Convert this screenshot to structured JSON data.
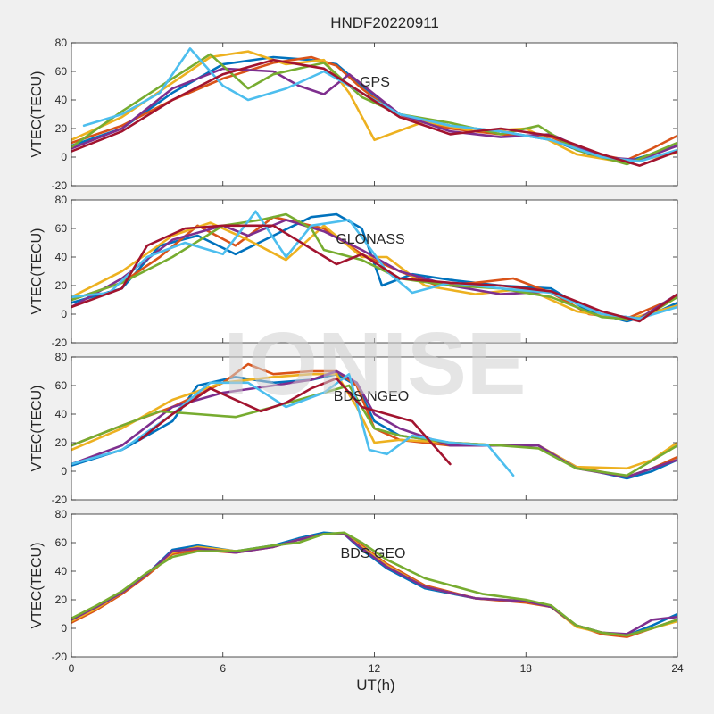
{
  "figure_title": "HNDF20220911",
  "watermark": "IONISE",
  "chart_data": [
    {
      "type": "line",
      "panel_label": "GPS",
      "ylabel": "VTEC(TECU)",
      "xlabel": "",
      "xlim": [
        0,
        24
      ],
      "ylim": [
        -20,
        80
      ],
      "xticks": [
        0,
        6,
        12,
        18,
        24
      ],
      "yticks": [
        -20,
        0,
        20,
        40,
        60,
        80
      ],
      "series": [
        {
          "color": "#0072BD",
          "x": [
            0.0,
            2.0,
            4.0,
            6.0,
            8.0,
            9.5,
            10.5,
            11.5,
            13.0,
            15.0,
            17.0,
            19.0,
            20.5,
            22.0,
            23.0,
            24.0
          ],
          "y": [
            8,
            20,
            45,
            65,
            70,
            68,
            65,
            50,
            30,
            22,
            18,
            12,
            2,
            -3,
            2,
            8
          ]
        },
        {
          "color": "#D95319",
          "x": [
            0.0,
            2.0,
            4.0,
            6.0,
            8.0,
            9.5,
            10.5,
            11.5,
            13.0,
            15.0,
            17.0,
            19.0,
            20.5,
            22.0,
            23.0,
            24.0
          ],
          "y": [
            10,
            22,
            40,
            55,
            66,
            70,
            64,
            48,
            28,
            20,
            16,
            14,
            3,
            -2,
            6,
            15
          ]
        },
        {
          "color": "#EDB120",
          "x": [
            0.0,
            2.0,
            4.0,
            5.5,
            7.0,
            8.5,
            10.0,
            11.0,
            12.0,
            14.0,
            16.0,
            18.0,
            20.0,
            22.0,
            24.0
          ],
          "y": [
            12,
            28,
            52,
            70,
            74,
            65,
            68,
            45,
            12,
            25,
            18,
            20,
            2,
            -4,
            3
          ]
        },
        {
          "color": "#7E2F8E",
          "x": [
            0.0,
            2.0,
            4.0,
            6.0,
            8.0,
            9.0,
            10.0,
            11.0,
            13.0,
            15.0,
            17.0,
            19.0,
            21.0,
            22.5,
            24.0
          ],
          "y": [
            6,
            20,
            48,
            62,
            60,
            50,
            44,
            58,
            30,
            18,
            14,
            16,
            0,
            -2,
            8
          ]
        },
        {
          "color": "#77AC30",
          "x": [
            0.0,
            2.0,
            4.0,
            5.5,
            7.0,
            8.0,
            10.0,
            11.5,
            13.0,
            15.0,
            17.0,
            18.5,
            20.0,
            22.0,
            24.0
          ],
          "y": [
            7,
            32,
            55,
            72,
            48,
            58,
            66,
            42,
            30,
            24,
            16,
            22,
            5,
            -5,
            10
          ]
        },
        {
          "color": "#4DBEEE",
          "x": [
            0.5,
            2.0,
            3.5,
            4.7,
            6.0,
            7.0,
            8.5,
            10.0,
            11.5,
            13.0,
            15.0,
            17.0,
            19.0,
            21.0,
            22.5,
            24.0
          ],
          "y": [
            22,
            30,
            45,
            76,
            50,
            40,
            48,
            60,
            45,
            30,
            22,
            18,
            12,
            0,
            -3,
            5
          ]
        },
        {
          "color": "#A2142F",
          "x": [
            0.0,
            2.0,
            4.0,
            6.0,
            8.0,
            10.0,
            11.5,
            13.0,
            15.0,
            17.0,
            19.0,
            21.0,
            22.5,
            24.0
          ],
          "y": [
            4,
            18,
            40,
            58,
            68,
            62,
            45,
            28,
            16,
            20,
            15,
            2,
            -6,
            4
          ]
        }
      ]
    },
    {
      "type": "line",
      "panel_label": "GLONASS",
      "ylabel": "VTEC(TECU)",
      "xlabel": "",
      "xlim": [
        0,
        24
      ],
      "ylim": [
        -20,
        80
      ],
      "xticks": [
        0,
        6,
        12,
        18,
        24
      ],
      "yticks": [
        -20,
        0,
        20,
        40,
        60,
        80
      ],
      "series": [
        {
          "color": "#0072BD",
          "x": [
            0.0,
            2.0,
            3.5,
            5.0,
            6.5,
            8.0,
            9.5,
            10.5,
            11.5,
            12.3,
            13.5,
            15.0,
            17.0,
            19.0,
            20.5,
            22.0,
            23.0,
            24.0
          ],
          "y": [
            8,
            18,
            48,
            55,
            42,
            55,
            68,
            70,
            60,
            20,
            28,
            24,
            20,
            18,
            2,
            -5,
            0,
            8
          ]
        },
        {
          "color": "#D95319",
          "x": [
            0.0,
            2.0,
            3.5,
            5.0,
            6.5,
            8.0,
            10.0,
            11.5,
            13.0,
            14.5,
            16.0,
            17.5,
            19.0,
            20.5,
            22.0,
            24.0
          ],
          "y": [
            10,
            22,
            40,
            62,
            48,
            68,
            60,
            42,
            30,
            20,
            22,
            25,
            15,
            0,
            -3,
            12
          ]
        },
        {
          "color": "#EDB120",
          "x": [
            0.0,
            2.0,
            4.0,
            5.5,
            7.0,
            8.5,
            10.0,
            11.5,
            12.5,
            14.0,
            16.0,
            18.0,
            20.0,
            22.0,
            24.0
          ],
          "y": [
            12,
            30,
            55,
            64,
            52,
            38,
            62,
            40,
            40,
            20,
            14,
            18,
            2,
            -4,
            6
          ]
        },
        {
          "color": "#7E2F8E",
          "x": [
            0.0,
            2.0,
            4.0,
            6.0,
            7.0,
            8.5,
            10.0,
            11.5,
            13.0,
            15.0,
            17.0,
            19.0,
            21.0,
            22.5,
            24.0
          ],
          "y": [
            5,
            25,
            52,
            62,
            55,
            66,
            58,
            45,
            30,
            20,
            14,
            16,
            0,
            -3,
            14
          ]
        },
        {
          "color": "#77AC30",
          "x": [
            0.0,
            2.0,
            4.0,
            6.0,
            7.5,
            8.5,
            9.5,
            10.0,
            11.5,
            13.0,
            15.0,
            17.0,
            19.0,
            21.0,
            22.5,
            24.0
          ],
          "y": [
            10,
            22,
            40,
            62,
            66,
            70,
            60,
            45,
            38,
            25,
            20,
            18,
            12,
            -2,
            -4,
            12
          ]
        },
        {
          "color": "#4DBEEE",
          "x": [
            0.0,
            1.5,
            3.0,
            4.5,
            6.0,
            7.3,
            8.5,
            9.5,
            11.0,
            12.5,
            13.5,
            15.0,
            17.0,
            19.0,
            21.0,
            22.5,
            24.0
          ],
          "y": [
            12,
            15,
            40,
            50,
            42,
            72,
            40,
            62,
            66,
            30,
            15,
            22,
            18,
            15,
            0,
            -3,
            5
          ]
        },
        {
          "color": "#A2142F",
          "x": [
            0.0,
            2.0,
            3.0,
            4.5,
            6.0,
            8.0,
            10.5,
            11.5,
            13.0,
            15.0,
            17.0,
            19.0,
            21.0,
            22.5,
            24.0
          ],
          "y": [
            5,
            18,
            48,
            60,
            62,
            62,
            35,
            42,
            25,
            22,
            20,
            16,
            2,
            -5,
            14
          ]
        }
      ]
    },
    {
      "type": "line",
      "panel_label": "BDS NGEO",
      "ylabel": "VTEC(TECU)",
      "xlabel": "",
      "xlim": [
        0,
        24
      ],
      "ylim": [
        -20,
        80
      ],
      "xticks": [
        0,
        6,
        12,
        18,
        24
      ],
      "yticks": [
        -20,
        0,
        20,
        40,
        60,
        80
      ],
      "series": [
        {
          "color": "#0072BD",
          "x": [
            0.0,
            2.0,
            4.0,
            5.0,
            6.5,
            8.0,
            9.5,
            10.5,
            11.3,
            12.0,
            13.0,
            15.0,
            17.0,
            18.5,
            20.0,
            22.0,
            23.0,
            24.0
          ],
          "y": [
            4,
            15,
            35,
            60,
            66,
            62,
            64,
            68,
            60,
            35,
            25,
            20,
            18,
            18,
            3,
            -5,
            0,
            8
          ]
        },
        {
          "color": "#D95319",
          "x": [
            0.0,
            2.0,
            4.0,
            6.0,
            7.0,
            8.0,
            9.5,
            10.5,
            11.3,
            12.0,
            13.0,
            15.0,
            17.0,
            18.5,
            20.0,
            22.0,
            23.0,
            24.0
          ],
          "y": [
            18,
            32,
            45,
            62,
            75,
            68,
            70,
            70,
            60,
            30,
            22,
            18,
            18,
            18,
            3,
            -4,
            2,
            10
          ]
        },
        {
          "color": "#EDB120",
          "x": [
            0.0,
            2.0,
            4.0,
            6.0,
            8.0,
            9.5,
            10.5,
            11.3,
            12.0,
            13.0,
            15.0,
            17.0,
            18.5,
            20.0,
            22.0,
            23.0,
            24.0
          ],
          "y": [
            15,
            30,
            50,
            62,
            66,
            68,
            68,
            45,
            20,
            22,
            20,
            18,
            18,
            3,
            2,
            8,
            20
          ]
        },
        {
          "color": "#7E2F8E",
          "x": [
            0.0,
            2.0,
            4.0,
            6.0,
            8.0,
            9.5,
            10.5,
            11.3,
            12.0,
            13.0,
            15.0,
            17.0,
            18.5,
            20.0,
            22.0,
            24.0
          ],
          "y": [
            5,
            18,
            45,
            55,
            60,
            64,
            70,
            62,
            40,
            30,
            18,
            18,
            18,
            2,
            -4,
            8
          ]
        },
        {
          "color": "#77AC30",
          "x": [
            0.0,
            2.0,
            3.5,
            5.0,
            6.5,
            8.0,
            10.0,
            11.0,
            12.0,
            13.0,
            15.0,
            17.0,
            18.5,
            20.0,
            22.0,
            24.0
          ],
          "y": [
            18,
            32,
            42,
            40,
            38,
            45,
            55,
            60,
            30,
            25,
            20,
            18,
            16,
            2,
            -3,
            18
          ]
        },
        {
          "color": "#4DBEEE",
          "x": [
            0.0,
            2.0,
            4.0,
            5.5,
            7.0,
            8.5,
            10.0,
            11.0,
            11.8,
            12.5,
            13.5,
            15.0,
            16.5,
            17.5
          ],
          "y": [
            5,
            15,
            40,
            62,
            62,
            45,
            55,
            68,
            15,
            12,
            25,
            20,
            18,
            -3
          ]
        },
        {
          "color": "#A2142F",
          "x": [
            2.7,
            4.0,
            5.5,
            7.5,
            8.5,
            9.5,
            10.5,
            11.5,
            12.5,
            13.5,
            15.0
          ],
          "y": [
            22,
            40,
            58,
            42,
            48,
            58,
            65,
            45,
            40,
            35,
            5
          ]
        }
      ]
    },
    {
      "type": "line",
      "panel_label": "BDS GEO",
      "ylabel": "VTEC(TECU)",
      "xlabel": "UT(h)",
      "xlim": [
        0,
        24
      ],
      "ylim": [
        -20,
        80
      ],
      "xticks": [
        0,
        6,
        12,
        18,
        24
      ],
      "yticks": [
        -20,
        0,
        20,
        40,
        60,
        80
      ],
      "series": [
        {
          "color": "#0072BD",
          "x": [
            0.0,
            1.0,
            2.0,
            3.0,
            4.0,
            5.0,
            6.5,
            8.0,
            9.0,
            10.0,
            10.8,
            11.5,
            12.5,
            14.0,
            16.0,
            18.0,
            19.0,
            20.0,
            21.0,
            22.0,
            23.0,
            24.0
          ],
          "y": [
            6,
            15,
            25,
            38,
            55,
            58,
            54,
            58,
            63,
            67,
            66,
            55,
            42,
            28,
            21,
            19,
            15,
            2,
            -3,
            -5,
            2,
            10
          ]
        },
        {
          "color": "#D95319",
          "x": [
            0.0,
            1.0,
            2.0,
            3.0,
            4.0,
            5.0,
            6.5,
            8.0,
            9.0,
            10.0,
            10.8,
            11.5,
            12.5,
            14.0,
            16.0,
            18.0,
            19.0,
            20.0,
            21.0,
            22.0,
            23.0,
            24.0
          ],
          "y": [
            4,
            13,
            24,
            37,
            52,
            55,
            53,
            57,
            62,
            66,
            66,
            58,
            45,
            30,
            21,
            18,
            15,
            2,
            -4,
            -6,
            0,
            6
          ]
        },
        {
          "color": "#EDB120",
          "x": [
            0.0,
            1.0,
            2.0,
            3.0,
            4.0,
            5.0,
            6.5,
            8.0,
            9.0,
            10.0,
            10.8,
            11.5,
            12.5,
            14.0,
            16.0,
            18.0,
            19.0,
            20.0,
            21.0,
            22.0,
            23.0,
            24.0
          ],
          "y": [
            5,
            14,
            25,
            38,
            53,
            57,
            54,
            57,
            62,
            66,
            66,
            57,
            44,
            29,
            21,
            19,
            15,
            1,
            -3,
            -5,
            0,
            5
          ]
        },
        {
          "color": "#7E2F8E",
          "x": [
            0.0,
            1.0,
            2.0,
            3.0,
            4.0,
            5.0,
            6.5,
            8.0,
            9.0,
            10.0,
            10.8,
            11.5,
            12.5,
            14.0,
            16.0,
            18.0,
            19.0,
            20.0,
            21.0,
            22.0,
            23.0,
            24.0
          ],
          "y": [
            6,
            15,
            25,
            38,
            54,
            56,
            53,
            57,
            62,
            66,
            66,
            56,
            43,
            29,
            21,
            19,
            15,
            2,
            -3,
            -4,
            6,
            8
          ]
        },
        {
          "color": "#77AC30",
          "x": [
            0.0,
            1.0,
            2.0,
            3.0,
            4.0,
            5.0,
            6.5,
            8.0,
            9.0,
            10.0,
            10.8,
            11.5,
            12.5,
            14.0,
            16.3,
            18.0,
            19.0,
            20.0,
            21.0,
            22.0,
            23.0,
            24.0
          ],
          "y": [
            7,
            16,
            26,
            39,
            50,
            54,
            54,
            58,
            60,
            66,
            67,
            60,
            48,
            35,
            24,
            20,
            16,
            2,
            -3,
            -5,
            0,
            6
          ]
        }
      ]
    }
  ]
}
